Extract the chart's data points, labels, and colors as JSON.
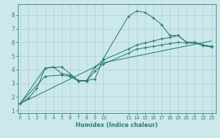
{
  "xlabel": "Humidex (Indice chaleur)",
  "bg_color": "#cce8ea",
  "grid_color": "#aacdd0",
  "line_color": "#2d7d78",
  "series1": [
    [
      0,
      1.5
    ],
    [
      1,
      1.9
    ],
    [
      2,
      2.6
    ],
    [
      3,
      4.1
    ],
    [
      4,
      4.2
    ],
    [
      5,
      3.7
    ],
    [
      6,
      3.6
    ],
    [
      7,
      3.2
    ],
    [
      8,
      3.2
    ],
    [
      9,
      3.3
    ],
    [
      10,
      4.8
    ],
    [
      13,
      7.9
    ],
    [
      14,
      8.3
    ],
    [
      15,
      8.2
    ],
    [
      16,
      7.8
    ],
    [
      17,
      7.3
    ],
    [
      18,
      6.5
    ],
    [
      19,
      6.5
    ],
    [
      20,
      6.0
    ],
    [
      21,
      6.0
    ],
    [
      22,
      5.8
    ],
    [
      23,
      5.7
    ]
  ],
  "series2": [
    [
      0,
      1.5
    ],
    [
      3,
      4.1
    ],
    [
      5,
      4.2
    ],
    [
      7,
      3.2
    ],
    [
      8,
      3.2
    ],
    [
      9,
      4.2
    ],
    [
      10,
      4.7
    ],
    [
      13,
      5.5
    ],
    [
      14,
      5.8
    ],
    [
      15,
      5.95
    ],
    [
      16,
      6.1
    ],
    [
      17,
      6.25
    ],
    [
      18,
      6.35
    ],
    [
      19,
      6.5
    ],
    [
      20,
      6.0
    ],
    [
      21,
      6.0
    ],
    [
      22,
      5.8
    ],
    [
      23,
      5.7
    ]
  ],
  "series3": [
    [
      0,
      1.5
    ],
    [
      3,
      3.5
    ],
    [
      5,
      3.6
    ],
    [
      6,
      3.5
    ],
    [
      7,
      3.15
    ],
    [
      8,
      3.15
    ],
    [
      9,
      3.9
    ],
    [
      10,
      4.4
    ],
    [
      13,
      5.2
    ],
    [
      14,
      5.5
    ],
    [
      15,
      5.6
    ],
    [
      16,
      5.7
    ],
    [
      17,
      5.8
    ],
    [
      18,
      5.9
    ],
    [
      19,
      6.0
    ],
    [
      20,
      5.95
    ],
    [
      21,
      5.95
    ],
    [
      22,
      5.75
    ],
    [
      23,
      5.65
    ]
  ],
  "series4": [
    [
      0,
      1.5
    ],
    [
      10,
      4.5
    ],
    [
      23,
      6.1
    ]
  ],
  "xlim": [
    -0.3,
    23.5
  ],
  "ylim": [
    0.8,
    8.8
  ],
  "yticks": [
    1,
    2,
    3,
    4,
    5,
    6,
    7,
    8
  ],
  "xticks": [
    0,
    1,
    2,
    3,
    4,
    5,
    6,
    7,
    8,
    9,
    10,
    13,
    14,
    15,
    16,
    17,
    18,
    19,
    20,
    21,
    22,
    23
  ]
}
